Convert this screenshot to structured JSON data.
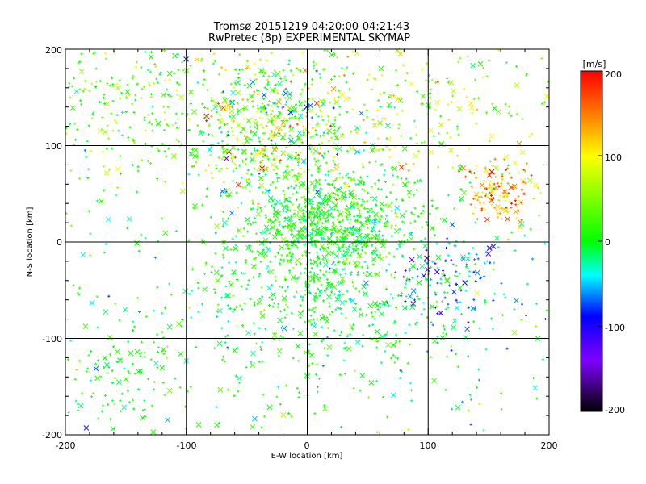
{
  "chart_data": {
    "type": "scatter",
    "title": "Tromsø 20151219 04:20:00-04:21:43",
    "subtitle": "RwPretec (8p) EXPERIMENTAL SKYMAP",
    "xlabel": "E-W location [km]",
    "ylabel": "N-S location [km]",
    "xlim": [
      -200,
      200
    ],
    "ylim": [
      -200,
      200
    ],
    "x_ticks": [
      "-200",
      "-100",
      "0",
      "100",
      "200"
    ],
    "y_ticks": [
      "-200",
      "-100",
      "0",
      "100",
      "200"
    ],
    "grid": true,
    "colorbar": {
      "label": "[m/s]",
      "range": [
        -200,
        200
      ],
      "ticks": [
        "200",
        "100",
        "0",
        "-100",
        "-200"
      ],
      "colormap": [
        "#000000",
        "#8000ff",
        "#0000ff",
        "#00ffff",
        "#00ff00",
        "#ffff00",
        "#ff8000",
        "#ff0000"
      ]
    },
    "markers": "small plus signs and crosses colored by velocity",
    "clusters": [
      {
        "cx": -30,
        "cy": 120,
        "sx": 40,
        "sy": 40,
        "v_mean": 40,
        "v_sd": 60,
        "weight": 0.25
      },
      {
        "cx": 20,
        "cy": 20,
        "sx": 35,
        "sy": 30,
        "v_mean": 10,
        "v_sd": 30,
        "weight": 0.3
      },
      {
        "cx": 160,
        "cy": 50,
        "sx": 15,
        "sy": 15,
        "v_mean": 140,
        "v_sd": 40,
        "weight": 0.05
      },
      {
        "cx": 10,
        "cy": -60,
        "sx": 60,
        "sy": 50,
        "v_mean": 0,
        "v_sd": 25,
        "weight": 0.2
      },
      {
        "cx": 120,
        "cy": -40,
        "sx": 25,
        "sy": 25,
        "v_mean": -70,
        "v_sd": 40,
        "weight": 0.04
      },
      {
        "cx": -150,
        "cy": 140,
        "sx": 40,
        "sy": 40,
        "v_mean": 30,
        "v_sd": 40,
        "weight": 0.08
      },
      {
        "cx": -150,
        "cy": -130,
        "sx": 25,
        "sy": 30,
        "v_mean": 5,
        "v_sd": 15,
        "weight": 0.03
      },
      {
        "cx": 100,
        "cy": 130,
        "sx": 50,
        "sy": 40,
        "v_mean": 70,
        "v_sd": 50,
        "weight": 0.05
      }
    ]
  }
}
